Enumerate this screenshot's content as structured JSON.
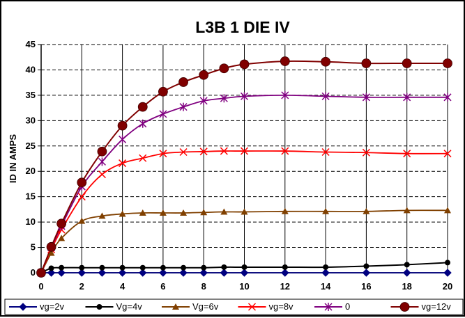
{
  "chart_data": {
    "type": "line",
    "title": "L3B  1  DIE   IV",
    "xlabel": "",
    "ylabel": "ID IN AMPS",
    "xlim": [
      0,
      20
    ],
    "ylim": [
      0,
      45
    ],
    "x_ticks": [
      "0",
      "2",
      "4",
      "6",
      "8",
      "10",
      "12",
      "14",
      "16",
      "18",
      "20"
    ],
    "y_ticks": [
      "0",
      "5",
      "10",
      "15",
      "20",
      "25",
      "30",
      "35",
      "40",
      "45"
    ],
    "grid": true,
    "legend_position": "bottom",
    "series": [
      {
        "name": "vg=2v",
        "color": "#000080",
        "marker": "diamond",
        "x": [
          0,
          0.5,
          1,
          2,
          3,
          4,
          5,
          6,
          7,
          8,
          9,
          10,
          12,
          14,
          16,
          18,
          20
        ],
        "values": [
          0,
          0,
          0,
          0,
          0,
          0,
          0,
          0,
          0,
          0,
          0,
          0,
          0,
          0,
          0,
          0,
          0
        ]
      },
      {
        "name": "Vg=4v",
        "color": "#000000",
        "marker": "circle",
        "x": [
          0,
          0.5,
          1,
          2,
          3,
          4,
          5,
          6,
          7,
          8,
          9,
          10,
          12,
          14,
          16,
          18,
          20
        ],
        "values": [
          0,
          0.9,
          1.0,
          1.0,
          1.0,
          1.0,
          1.0,
          1.0,
          1.0,
          1.0,
          1.1,
          1.1,
          1.1,
          1.1,
          1.3,
          1.6,
          2.0
        ]
      },
      {
        "name": "Vg=6v",
        "color": "#804000",
        "marker": "triangle",
        "x": [
          0,
          0.5,
          1,
          2,
          3,
          4,
          5,
          6,
          7,
          8,
          9,
          10,
          12,
          14,
          16,
          18,
          20
        ],
        "values": [
          0,
          3.9,
          6.8,
          10.2,
          11.2,
          11.6,
          11.8,
          11.8,
          11.8,
          11.9,
          12.0,
          12.0,
          12.1,
          12.1,
          12.1,
          12.3,
          12.3
        ]
      },
      {
        "name": "vg=8v",
        "color": "#ff0000",
        "marker": "star",
        "x": [
          0,
          0.5,
          1,
          2,
          3,
          4,
          5,
          6,
          7,
          8,
          9,
          10,
          12,
          14,
          16,
          18,
          20
        ],
        "values": [
          0,
          4.6,
          8.5,
          15.0,
          19.4,
          21.6,
          22.6,
          23.5,
          23.8,
          23.9,
          24.0,
          24.0,
          24.0,
          23.8,
          23.7,
          23.5,
          23.5
        ]
      },
      {
        "name": "0",
        "color": "#800080",
        "marker": "asterisk",
        "x": [
          0,
          0.5,
          1,
          2,
          3,
          4,
          5,
          6,
          7,
          8,
          9,
          10,
          12,
          14,
          16,
          18,
          20
        ],
        "values": [
          0,
          5.0,
          9.2,
          17.0,
          21.9,
          26.3,
          29.4,
          31.3,
          32.7,
          33.9,
          34.4,
          34.8,
          35.0,
          34.8,
          34.6,
          34.6,
          34.6
        ]
      },
      {
        "name": "vg=12v",
        "color": "#800000",
        "marker": "circle-big",
        "x": [
          0,
          0.5,
          1,
          2,
          3,
          4,
          5,
          6,
          7,
          8,
          9,
          10,
          12,
          14,
          16,
          18,
          20
        ],
        "values": [
          0,
          5.1,
          9.7,
          17.8,
          23.9,
          29.0,
          32.7,
          35.7,
          37.6,
          39.0,
          40.3,
          41.1,
          41.7,
          41.6,
          41.3,
          41.3,
          41.3
        ]
      }
    ]
  }
}
